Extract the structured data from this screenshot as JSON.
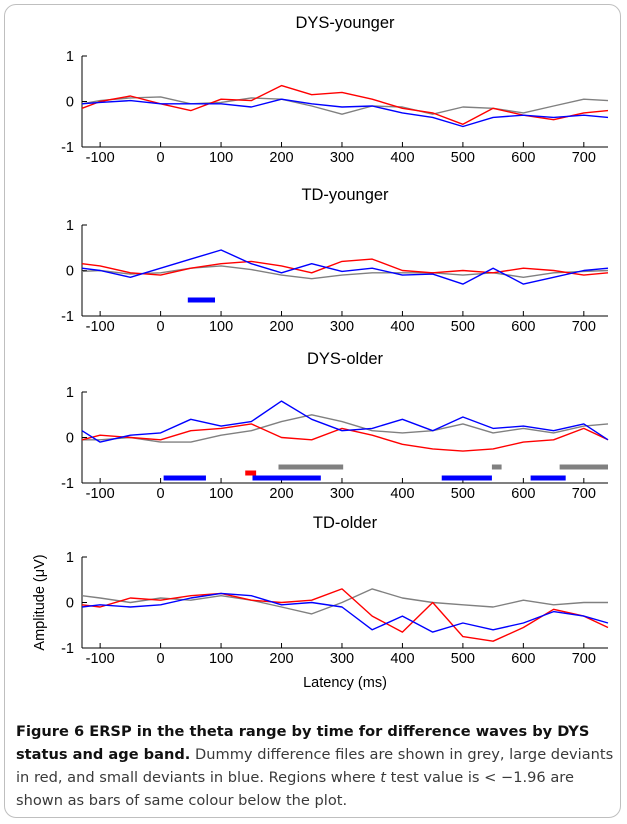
{
  "chart_data": [
    {
      "type": "line",
      "title": "DYS-younger",
      "xlabel": "",
      "ylabel": "",
      "xlim": [
        -130,
        740
      ],
      "ylim": [
        -1,
        1
      ],
      "xticks": [
        -100,
        0,
        100,
        200,
        300,
        400,
        500,
        600,
        700
      ],
      "yticks": [
        -1,
        0,
        1
      ],
      "series": [
        {
          "color": "#808080",
          "x": [
            -130,
            -100,
            -50,
            0,
            50,
            100,
            150,
            200,
            250,
            300,
            350,
            400,
            450,
            500,
            550,
            600,
            650,
            700,
            740
          ],
          "y": [
            -0.05,
            0.02,
            0.08,
            0.1,
            -0.05,
            -0.02,
            0.08,
            0.05,
            -0.1,
            -0.28,
            -0.1,
            -0.12,
            -0.28,
            -0.12,
            -0.15,
            -0.25,
            -0.1,
            0.05,
            0.02
          ]
        },
        {
          "color": "#ff0000",
          "x": [
            -130,
            -100,
            -50,
            0,
            50,
            100,
            150,
            200,
            250,
            300,
            350,
            400,
            450,
            500,
            550,
            600,
            650,
            700,
            740
          ],
          "y": [
            -0.15,
            0.0,
            0.12,
            -0.05,
            -0.2,
            0.05,
            0.02,
            0.35,
            0.15,
            0.2,
            0.05,
            -0.15,
            -0.25,
            -0.5,
            -0.15,
            -0.3,
            -0.4,
            -0.25,
            -0.2
          ]
        },
        {
          "color": "#0000ff",
          "x": [
            -130,
            -100,
            -50,
            0,
            50,
            100,
            150,
            200,
            250,
            300,
            350,
            400,
            450,
            500,
            550,
            600,
            650,
            700,
            740
          ],
          "y": [
            -0.05,
            -0.02,
            0.02,
            -0.05,
            -0.05,
            -0.05,
            -0.12,
            0.05,
            -0.05,
            -0.12,
            -0.1,
            -0.25,
            -0.35,
            -0.55,
            -0.35,
            -0.3,
            -0.35,
            -0.3,
            -0.35
          ]
        }
      ],
      "sig_bars": []
    },
    {
      "type": "line",
      "title": "TD-younger",
      "xlabel": "",
      "ylabel": "",
      "xlim": [
        -130,
        740
      ],
      "ylim": [
        -1,
        1
      ],
      "xticks": [
        -100,
        0,
        100,
        200,
        300,
        400,
        500,
        600,
        700
      ],
      "yticks": [
        -1,
        0,
        1
      ],
      "series": [
        {
          "color": "#808080",
          "x": [
            -130,
            -100,
            -50,
            0,
            50,
            100,
            150,
            200,
            250,
            300,
            350,
            400,
            450,
            500,
            550,
            600,
            650,
            700,
            740
          ],
          "y": [
            -0.02,
            0.0,
            -0.08,
            -0.05,
            0.05,
            0.1,
            0.02,
            -0.1,
            -0.18,
            -0.1,
            -0.05,
            -0.05,
            -0.05,
            -0.1,
            -0.05,
            -0.15,
            -0.05,
            -0.02,
            0.0
          ]
        },
        {
          "color": "#ff0000",
          "x": [
            -130,
            -100,
            -50,
            0,
            50,
            100,
            150,
            200,
            250,
            300,
            350,
            400,
            450,
            500,
            550,
            600,
            650,
            700,
            740
          ],
          "y": [
            0.15,
            0.1,
            -0.05,
            -0.1,
            0.05,
            0.15,
            0.2,
            0.1,
            -0.05,
            0.2,
            0.25,
            0.0,
            -0.05,
            0.0,
            -0.05,
            0.05,
            0.0,
            -0.1,
            -0.05
          ]
        },
        {
          "color": "#0000ff",
          "x": [
            -130,
            -100,
            -50,
            0,
            50,
            100,
            150,
            200,
            250,
            300,
            350,
            400,
            450,
            500,
            550,
            600,
            650,
            700,
            740
          ],
          "y": [
            0.05,
            0.0,
            -0.15,
            0.05,
            0.25,
            0.45,
            0.15,
            -0.05,
            0.15,
            -0.02,
            0.05,
            -0.1,
            -0.08,
            -0.3,
            0.05,
            -0.3,
            -0.15,
            0.0,
            0.05
          ]
        }
      ],
      "sig_bars": [
        {
          "color": "#0000ff",
          "x1": 45,
          "x2": 90,
          "lane": 0
        }
      ]
    },
    {
      "type": "line",
      "title": "DYS-older",
      "xlabel": "",
      "ylabel": "",
      "xlim": [
        -130,
        740
      ],
      "ylim": [
        -1,
        1
      ],
      "xticks": [
        -100,
        0,
        100,
        200,
        300,
        400,
        500,
        600,
        700
      ],
      "yticks": [
        -1,
        0,
        1
      ],
      "series": [
        {
          "color": "#808080",
          "x": [
            -130,
            -100,
            -50,
            0,
            50,
            100,
            150,
            200,
            250,
            300,
            350,
            400,
            450,
            500,
            550,
            600,
            650,
            700,
            740
          ],
          "y": [
            -0.05,
            -0.05,
            0.0,
            -0.1,
            -0.1,
            0.05,
            0.15,
            0.35,
            0.5,
            0.35,
            0.15,
            0.1,
            0.15,
            0.3,
            0.1,
            0.2,
            0.1,
            0.25,
            0.3
          ]
        },
        {
          "color": "#ff0000",
          "x": [
            -130,
            -100,
            -50,
            0,
            50,
            100,
            150,
            200,
            250,
            300,
            350,
            400,
            450,
            500,
            550,
            600,
            650,
            700,
            740
          ],
          "y": [
            -0.05,
            0.05,
            0.0,
            -0.05,
            0.15,
            0.2,
            0.3,
            0.0,
            -0.05,
            0.2,
            0.05,
            -0.15,
            -0.25,
            -0.3,
            -0.25,
            -0.1,
            -0.05,
            0.2,
            -0.05
          ]
        },
        {
          "color": "#0000ff",
          "x": [
            -130,
            -100,
            -50,
            0,
            50,
            100,
            150,
            200,
            250,
            300,
            350,
            400,
            450,
            500,
            550,
            600,
            650,
            700,
            740
          ],
          "y": [
            0.15,
            -0.1,
            0.05,
            0.1,
            0.4,
            0.25,
            0.35,
            0.8,
            0.4,
            0.15,
            0.2,
            0.4,
            0.15,
            0.45,
            0.2,
            0.25,
            0.15,
            0.3,
            -0.05
          ]
        }
      ],
      "sig_bars": [
        {
          "color": "#808080",
          "x1": 195,
          "x2": 302,
          "lane": 0
        },
        {
          "color": "#808080",
          "x1": 548,
          "x2": 564,
          "lane": 0
        },
        {
          "color": "#808080",
          "x1": 660,
          "x2": 740,
          "lane": 0
        },
        {
          "color": "#ff0000",
          "x1": 140,
          "x2": 158,
          "lane": 1
        },
        {
          "color": "#0000ff",
          "x1": 5,
          "x2": 75,
          "lane": 2
        },
        {
          "color": "#0000ff",
          "x1": 152,
          "x2": 265,
          "lane": 2
        },
        {
          "color": "#0000ff",
          "x1": 465,
          "x2": 548,
          "lane": 2
        },
        {
          "color": "#0000ff",
          "x1": 612,
          "x2": 670,
          "lane": 2
        }
      ]
    },
    {
      "type": "line",
      "title": "TD-older",
      "xlabel": "Latency (ms)",
      "ylabel": "Amplitude (μV)",
      "xlim": [
        -130,
        740
      ],
      "ylim": [
        -1,
        1
      ],
      "xticks": [
        -100,
        0,
        100,
        200,
        300,
        400,
        500,
        600,
        700
      ],
      "yticks": [
        -1,
        0,
        1
      ],
      "series": [
        {
          "color": "#808080",
          "x": [
            -130,
            -100,
            -50,
            0,
            50,
            100,
            150,
            200,
            250,
            300,
            350,
            400,
            450,
            500,
            550,
            600,
            650,
            700,
            740
          ],
          "y": [
            0.15,
            0.1,
            0.0,
            0.1,
            0.05,
            0.15,
            0.05,
            -0.1,
            -0.25,
            0.0,
            0.3,
            0.1,
            0.0,
            -0.05,
            -0.1,
            0.05,
            -0.05,
            0.0,
            0.0
          ]
        },
        {
          "color": "#ff0000",
          "x": [
            -130,
            -100,
            -50,
            0,
            50,
            100,
            150,
            200,
            250,
            300,
            350,
            400,
            450,
            500,
            550,
            600,
            650,
            700,
            740
          ],
          "y": [
            -0.05,
            -0.1,
            0.1,
            0.05,
            0.15,
            0.2,
            0.05,
            0.0,
            0.05,
            0.3,
            -0.3,
            -0.65,
            0.0,
            -0.75,
            -0.85,
            -0.55,
            -0.15,
            -0.3,
            -0.55
          ]
        },
        {
          "color": "#0000ff",
          "x": [
            -130,
            -100,
            -50,
            0,
            50,
            100,
            150,
            200,
            250,
            300,
            350,
            400,
            450,
            500,
            550,
            600,
            650,
            700,
            740
          ],
          "y": [
            -0.1,
            -0.05,
            -0.1,
            -0.05,
            0.1,
            0.2,
            0.15,
            -0.05,
            0.0,
            -0.1,
            -0.6,
            -0.3,
            -0.65,
            -0.45,
            -0.6,
            -0.45,
            -0.2,
            -0.3,
            -0.45
          ]
        }
      ],
      "sig_bars": []
    }
  ],
  "caption": {
    "label": "Figure 6",
    "title": " ERSP in the theta range by time for difference waves by DYS status and age band.",
    "text1": " Dummy difference files are shown in grey, large deviants in red, and small deviants in blue. Regions where ",
    "t": "t",
    "text2": " test value is < −1.96 are shown as bars of same colour below the plot."
  }
}
